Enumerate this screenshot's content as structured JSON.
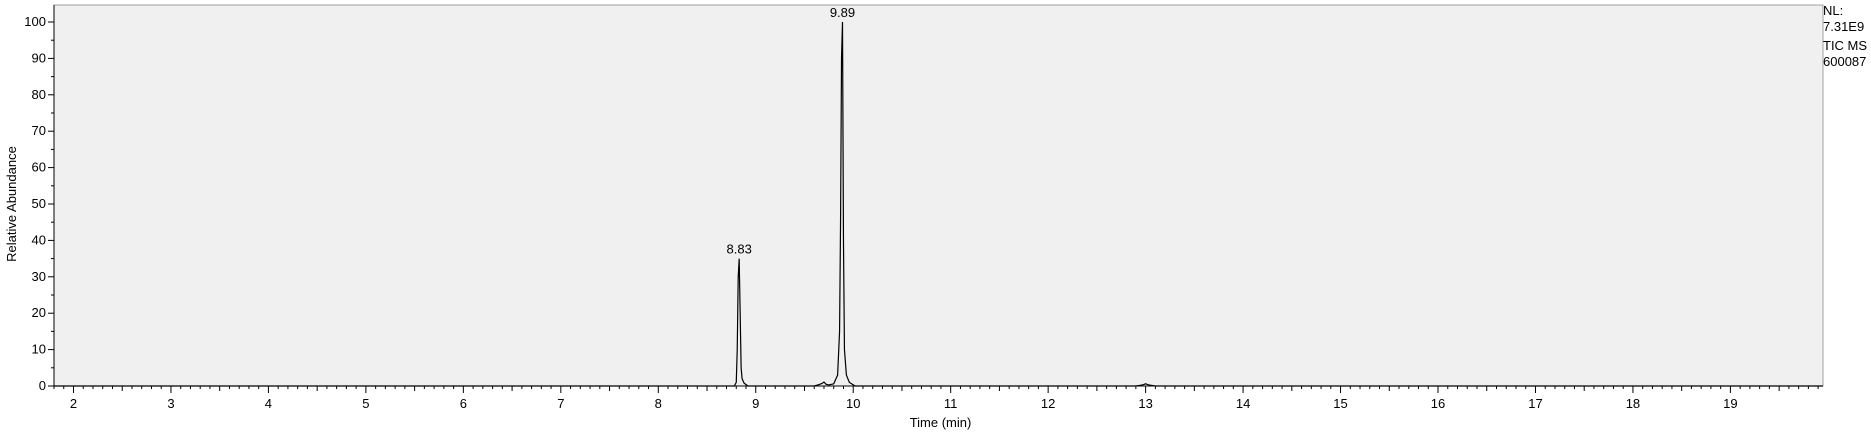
{
  "chart_data": {
    "type": "line",
    "title": "",
    "xlabel": "Time (min)",
    "ylabel": "Relative Abundance",
    "xlim": [
      1.8,
      19.95
    ],
    "ylim": [
      0,
      100
    ],
    "x_ticks": [
      2,
      3,
      4,
      5,
      6,
      7,
      8,
      9,
      10,
      11,
      12,
      13,
      14,
      15,
      16,
      17,
      18,
      19
    ],
    "y_ticks": [
      0,
      10,
      20,
      30,
      40,
      50,
      60,
      70,
      80,
      90,
      100
    ],
    "grid": false,
    "legend": "none",
    "background_color": "#f0f0f0",
    "trace_color": "#000000",
    "series": [
      {
        "x": [
          1.8,
          8.78,
          8.8,
          8.81,
          8.82,
          8.83,
          8.84,
          8.85,
          8.86,
          8.88,
          8.92,
          9.6,
          9.65,
          9.68,
          9.7,
          9.72,
          9.75,
          9.8,
          9.84,
          9.86,
          9.87,
          9.88,
          9.89,
          9.9,
          9.91,
          9.93,
          9.96,
          10.02,
          12.9,
          12.95,
          12.98,
          13.0,
          13.02,
          13.05,
          13.1,
          19.95
        ],
        "y": [
          0,
          0,
          1,
          10,
          30,
          35,
          20,
          5,
          2,
          0.8,
          0,
          0,
          0.4,
          0.7,
          1.1,
          0.5,
          0.3,
          0.6,
          3,
          15,
          45,
          90,
          100,
          40,
          10,
          3,
          1,
          0,
          0,
          0.2,
          0.4,
          0.6,
          0.4,
          0.2,
          0,
          0
        ]
      }
    ],
    "peak_labels": [
      {
        "x": 8.83,
        "y": 35,
        "text": "8.83"
      },
      {
        "x": 9.89,
        "y": 100,
        "text": "9.89"
      }
    ]
  },
  "side_info": {
    "nl_label": "NL:",
    "nl_value": "7.31E9",
    "scan_type": "TIC  MS",
    "file_id": "600087"
  }
}
